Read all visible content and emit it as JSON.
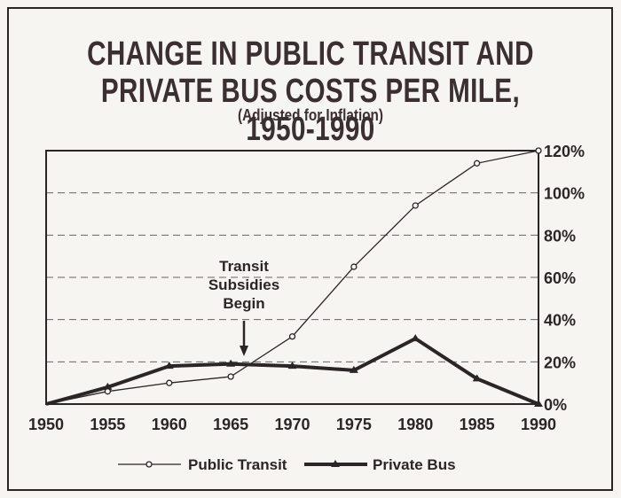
{
  "chart_data": {
    "type": "line",
    "title_line1": "CHANGE IN PUBLIC TRANSIT AND",
    "title_line2": "PRIVATE BUS COSTS PER MILE, 1950-1990",
    "subtitle": "(Adjusted for Inflation)",
    "x": [
      1950,
      1955,
      1960,
      1965,
      1970,
      1975,
      1980,
      1985,
      1990
    ],
    "x_tick_labels": [
      "1950",
      "1955",
      "1960",
      "1965",
      "1970",
      "1975",
      "1980",
      "1985",
      "1990"
    ],
    "y_tick_labels": [
      "0%",
      "20%",
      "40%",
      "60%",
      "80%",
      "100%",
      "120%"
    ],
    "ylim": [
      0,
      120
    ],
    "y_ticks": [
      0,
      20,
      40,
      60,
      80,
      100,
      120
    ],
    "xlim": [
      1950,
      1990
    ],
    "grid": "horizontal dashed",
    "legend_position": "bottom",
    "series": [
      {
        "name": "Public Transit",
        "marker": "circle",
        "values": [
          0,
          6,
          10,
          13,
          32,
          65,
          94,
          114,
          120
        ]
      },
      {
        "name": "Private Bus",
        "marker": "triangle",
        "values": [
          0,
          8,
          18,
          19,
          18,
          16,
          31,
          12,
          0
        ]
      }
    ],
    "annotation": {
      "lines": [
        "Transit",
        "Subsidies",
        "Begin"
      ],
      "x": 1966
    }
  },
  "colors": {
    "ink": "#2b2526",
    "title": "#3a2f31",
    "grid": "#6b6163",
    "background": "#f7f5f2"
  }
}
